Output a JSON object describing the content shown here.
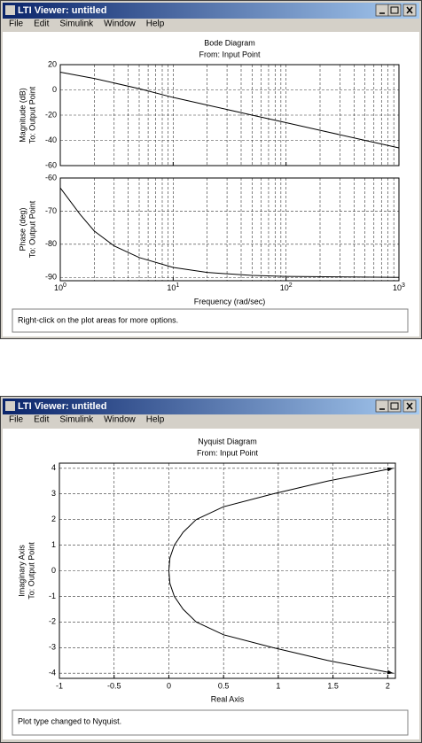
{
  "windows": [
    {
      "title": "LTI Viewer: untitled",
      "menu": [
        "File",
        "Edit",
        "Simulink",
        "Window",
        "Help"
      ],
      "status": "Right-click on the plot areas for more options."
    },
    {
      "title": "LTI Viewer: untitled",
      "menu": [
        "File",
        "Edit",
        "Simulink",
        "Window",
        "Help"
      ],
      "status": "Plot type changed to Nyquist."
    }
  ],
  "chart_data": [
    {
      "type": "line",
      "title": "Bode Diagram",
      "subtitle": "From: Input Point",
      "y_label": "Magnitude (dB)",
      "y_label2": "To: Output Point",
      "log_x": true,
      "grid": true,
      "xtick_labels": false,
      "x": [
        1,
        2,
        5,
        10,
        20,
        50,
        100,
        200,
        500,
        1000
      ],
      "series": [
        {
          "color": "#000000",
          "values": [
            14,
            9,
            1,
            -6,
            -12,
            -20,
            -26,
            -32,
            -40,
            -46
          ]
        }
      ],
      "xlim": [
        1,
        1000
      ],
      "xticks": [
        1,
        10,
        100,
        1000
      ],
      "ylim": [
        -60,
        20
      ],
      "yticks": [
        20,
        0,
        -20,
        -40,
        -60
      ]
    },
    {
      "type": "line",
      "y_label": "Phase (deg)",
      "y_label2": "To: Output Point",
      "x_label": "Frequency (rad/sec)",
      "log_x": true,
      "grid": true,
      "xtick_labels": true,
      "x": [
        1,
        1.5,
        2,
        3,
        5,
        10,
        20,
        50,
        100,
        1000
      ],
      "series": [
        {
          "color": "#000000",
          "values": [
            -63,
            -71,
            -76,
            -80.5,
            -84,
            -87,
            -88.5,
            -89.4,
            -89.7,
            -90
          ]
        }
      ],
      "xlim": [
        1,
        1000
      ],
      "xticks": [
        {
          "value": 1,
          "label": "10",
          "exponent": "0"
        },
        {
          "value": 10,
          "label": "10",
          "exponent": "1"
        },
        {
          "value": 100,
          "label": "10",
          "exponent": "2"
        },
        {
          "value": 1000,
          "label": "10",
          "exponent": "3"
        }
      ],
      "ylim": [
        -91,
        -60
      ],
      "yticks": [
        -60,
        -70,
        -80,
        -90
      ]
    },
    {
      "type": "line",
      "title": "Nyquist Diagram",
      "subtitle": "From: Input Point",
      "y_label": "Imaginary Axis",
      "y_label2": "To: Output Point",
      "x_label": "Real Axis",
      "log_x": false,
      "grid": true,
      "xtick_labels": true,
      "x": [
        2.05,
        1.45,
        0.95,
        0.5,
        0.25,
        0.13,
        0.05,
        0.01,
        0,
        0.01,
        0.05,
        0.13,
        0.25,
        0.5,
        0.95,
        1.45,
        2.05
      ],
      "series": [
        {
          "color": "#000000",
          "values": [
            4,
            3.5,
            3,
            2.5,
            2,
            1.5,
            1,
            0.5,
            0,
            -0.5,
            -1,
            -1.5,
            -2,
            -2.5,
            -3,
            -3.5,
            -4
          ]
        }
      ],
      "xlim": [
        -1,
        2.07
      ],
      "xticks": [
        -1,
        -0.5,
        0,
        0.5,
        1,
        1.5,
        2
      ],
      "ylim": [
        -4.2,
        4.2
      ],
      "yticks": [
        4,
        3,
        2,
        1,
        0,
        -1,
        -2,
        -3,
        -4
      ]
    }
  ]
}
